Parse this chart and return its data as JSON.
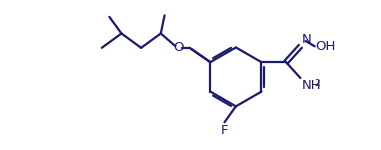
{
  "bg_color": "#ffffff",
  "line_color": "#1a1a6e",
  "line_width": 1.6,
  "font_size": 9.5,
  "figsize": [
    3.81,
    1.5
  ],
  "dpi": 100,
  "xlim": [
    0,
    10
  ],
  "ylim": [
    0,
    3.9
  ]
}
